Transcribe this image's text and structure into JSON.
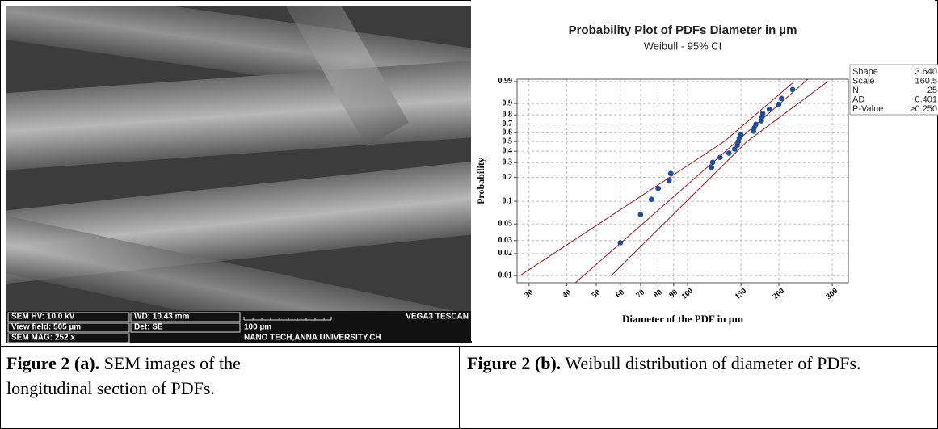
{
  "sem_image": {
    "info": [
      "SEM HV: 10.0 kV",
      "WD: 10.43 mm",
      "VEGA3 TESCAN",
      "View field: 505 µm",
      "Det: SE",
      "100 µm",
      "SEM MAG: 252 x",
      "NANO TECH,ANNA UNIVERSITY,CH"
    ]
  },
  "chart_data": {
    "type": "probability",
    "title": "Probability Plot of PDFs Diameter in µm",
    "subtitle": "Weibull - 95% CI",
    "x_label": "Diameter of the PDF in µm",
    "y_label": "Probability",
    "log_x": true,
    "y_scale": "weibull",
    "grid": true,
    "xlim": [
      27.4,
      339
    ],
    "xticks": [
      30,
      40,
      50,
      60,
      70,
      80,
      90,
      100,
      150,
      200,
      300
    ],
    "ylim": [
      0.008,
      0.993
    ],
    "yticks": [
      0.01,
      0.02,
      0.03,
      0.05,
      0.1,
      0.2,
      0.3,
      0.4,
      0.5,
      0.6,
      0.7,
      0.8,
      0.9,
      0.99
    ],
    "points": {
      "color": "#1a4f9c",
      "x": [
        60,
        70,
        76,
        80,
        87,
        88,
        120,
        121,
        128,
        137,
        143,
        146,
        147,
        148,
        150,
        165,
        166,
        168,
        175,
        176,
        177,
        186,
        200,
        204,
        222
      ],
      "y": [
        0.028,
        0.067,
        0.106,
        0.146,
        0.185,
        0.224,
        0.264,
        0.303,
        0.343,
        0.382,
        0.421,
        0.461,
        0.5,
        0.539,
        0.579,
        0.618,
        0.657,
        0.697,
        0.736,
        0.776,
        0.815,
        0.854,
        0.894,
        0.933,
        0.972
      ]
    },
    "line_color": "#a31515",
    "ci_lines": [
      {
        "x": [
          28,
          132,
          225
        ],
        "y": [
          0.01,
          0.5,
          0.99
        ]
      },
      {
        "x": [
          56,
          157,
          290
        ],
        "y": [
          0.01,
          0.5,
          0.99
        ]
      }
    ],
    "stats": {
      "labels": [
        "Shape",
        "Scale",
        "N",
        "AD",
        "P-Value"
      ],
      "values": [
        3.64,
        160.5,
        25,
        0.401,
        null
      ],
      "value_labels": [
        "3.640",
        "160.5",
        "25",
        "0.401",
        ">0.250"
      ]
    }
  },
  "captions": [
    {
      "label": "Figure 2 (a).",
      "text": "SEM images of the longitudinal section of PDFs."
    },
    {
      "label": "Figure 2 (b).",
      "text": "Weibull distribution of diameter of PDFs."
    }
  ]
}
